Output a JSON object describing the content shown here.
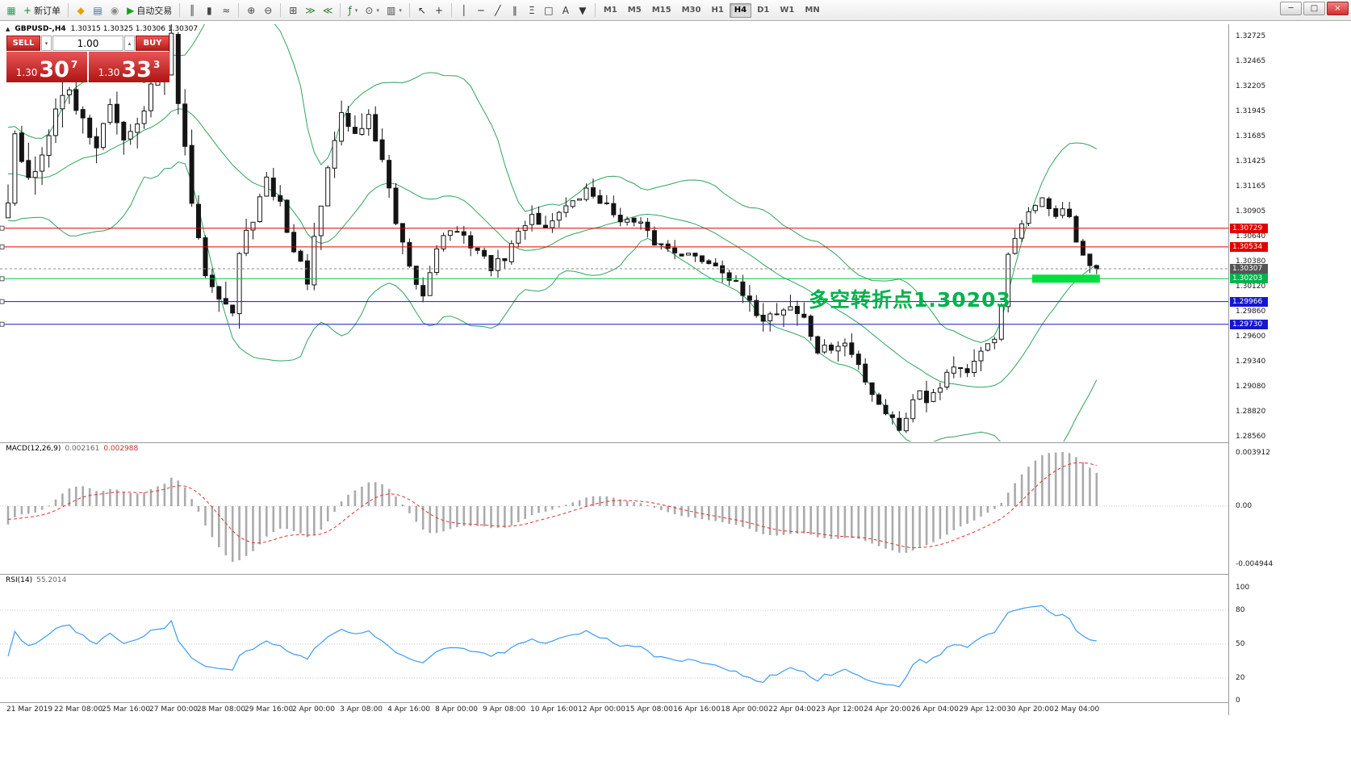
{
  "window": {
    "controls": {
      "minimize": "─",
      "maximize": "□",
      "close": "×"
    }
  },
  "toolbar": {
    "items": [
      {
        "type": "icon",
        "name": "chart-window-icon",
        "glyph": "▦",
        "color": "#2e9e5b"
      },
      {
        "type": "button",
        "name": "new-order-button",
        "glyph": "+",
        "color": "#1a7f37",
        "label": "新订单"
      },
      {
        "type": "sep"
      },
      {
        "type": "button",
        "name": "profiles-button",
        "glyph": "◆",
        "color": "#e8a000"
      },
      {
        "type": "button",
        "name": "data-window-button",
        "glyph": "▤",
        "color": "#3a6ea5"
      },
      {
        "type": "button",
        "name": "alerts-button",
        "glyph": "◉",
        "color": "#8a8a8a"
      },
      {
        "type": "button",
        "name": "auto-trading-button",
        "glyph": "▶",
        "color": "#18a018",
        "label": "自动交易"
      },
      {
        "type": "sep"
      },
      {
        "type": "button",
        "name": "bar-chart-button",
        "glyph": "║",
        "color": "#444444"
      },
      {
        "type": "button",
        "name": "candlestick-chart-button",
        "glyph": "▮",
        "color": "#444444"
      },
      {
        "type": "button",
        "name": "line-chart-button",
        "glyph": "≈",
        "color": "#444444"
      },
      {
        "type": "sep"
      },
      {
        "type": "button",
        "name": "zoom-in-button",
        "glyph": "⊕",
        "color": "#444444"
      },
      {
        "type": "button",
        "name": "zoom-out-button",
        "glyph": "⊖",
        "color": "#444444"
      },
      {
        "type": "sep"
      },
      {
        "type": "button",
        "name": "tile-windows-button",
        "glyph": "⊞",
        "color": "#444444"
      },
      {
        "type": "button",
        "name": "auto-scroll-button",
        "glyph": "≫",
        "color": "#2e7d32"
      },
      {
        "type": "button",
        "name": "chart-shift-button",
        "glyph": "≪",
        "color": "#2e7d32"
      },
      {
        "type": "sep"
      },
      {
        "type": "button",
        "name": "indicators-button",
        "glyph": "ƒ",
        "color": "#1a7f37",
        "caret": true
      },
      {
        "type": "button",
        "name": "periods-button",
        "glyph": "⊙",
        "color": "#444444",
        "caret": true
      },
      {
        "type": "button",
        "name": "templates-button",
        "glyph": "▥",
        "color": "#444444",
        "caret": true
      },
      {
        "type": "sep"
      },
      {
        "type": "button",
        "name": "cursor-button",
        "glyph": "↖",
        "color": "#333333"
      },
      {
        "type": "button",
        "name": "crosshair-button",
        "glyph": "+",
        "color": "#333333"
      },
      {
        "type": "sep"
      },
      {
        "type": "button",
        "name": "vertical-line-button",
        "glyph": "│",
        "color": "#333333"
      },
      {
        "type": "button",
        "name": "horizontal-line-button",
        "glyph": "─",
        "color": "#333333"
      },
      {
        "type": "button",
        "name": "trendline-button",
        "glyph": "╱",
        "color": "#333333"
      },
      {
        "type": "button",
        "name": "channel-button",
        "glyph": "∥",
        "color": "#333333"
      },
      {
        "type": "button",
        "name": "fibonacci-button",
        "glyph": "Ξ",
        "color": "#333333"
      },
      {
        "type": "button",
        "name": "shapes-button",
        "glyph": "□",
        "color": "#333333"
      },
      {
        "type": "button",
        "name": "text-button",
        "glyph": "A",
        "color": "#333333"
      },
      {
        "type": "button",
        "name": "arrows-button",
        "glyph": "▼",
        "color": "#333333"
      },
      {
        "type": "sep"
      }
    ],
    "timeframes": [
      "M1",
      "M5",
      "M15",
      "M30",
      "H1",
      "H4",
      "D1",
      "W1",
      "MN"
    ],
    "active_timeframe": "H4"
  },
  "chart": {
    "symbol_title": "GBPUSD-,H4",
    "ohlc": "1.30315 1.30325 1.30306 1.30307",
    "trade_panel": {
      "sell_label": "SELL",
      "buy_label": "BUY",
      "volume": "1.00",
      "sell_price": {
        "base": "1.30",
        "big": "30",
        "sup": "7"
      },
      "buy_price": {
        "base": "1.30",
        "big": "33",
        "sup": "3"
      }
    },
    "annotation_text": "多空转折点1.30203",
    "axis_prices": [
      "1.32725",
      "1.32465",
      "1.32205",
      "1.31945",
      "1.31685",
      "1.31425",
      "1.31165",
      "1.30905",
      "1.30640",
      "1.30380",
      "1.30120",
      "1.29860",
      "1.29600",
      "1.29340",
      "1.29080",
      "1.28820",
      "1.28560"
    ],
    "price_lines": [
      {
        "price": 1.30729,
        "label": "1.30729",
        "color": "#e00000",
        "label_bg": "#e00000",
        "style": "solid"
      },
      {
        "price": 1.30534,
        "label": "1.30534",
        "color": "#e00000",
        "label_bg": "#e00000",
        "style": "solid"
      },
      {
        "price": 1.30307,
        "label": "1.30307",
        "color": "#8a8a8a",
        "label_bg": "#555555",
        "style": "current"
      },
      {
        "price": 1.30203,
        "label": "1.30203",
        "color": "#00c24a",
        "label_bg": "#00b24c",
        "style": "solid"
      },
      {
        "price": 1.29966,
        "label": "1.29966",
        "color": "#1616d0",
        "label_bg": "#1616d0",
        "style": "solid"
      },
      {
        "price": 1.2973,
        "label": "1.29730",
        "color": "#1616d0",
        "label_bg": "#1616d0",
        "style": "solid"
      }
    ],
    "highlight_bar": {
      "price": 1.30203,
      "start_index": 151,
      "end_index": 160
    },
    "time_labels": [
      "21 Mar 2019",
      "22 Mar 08:00",
      "25 Mar 16:00",
      "27 Mar 00:00",
      "28 Mar 08:00",
      "29 Mar 16:00",
      "2 Apr 00:00",
      "3 Apr 08:00",
      "4 Apr 16:00",
      "8 Apr 00:00",
      "9 Apr 08:00",
      "10 Apr 16:00",
      "12 Apr 00:00",
      "15 Apr 08:00",
      "16 Apr 16:00",
      "18 Apr 00:00",
      "22 Apr 04:00",
      "23 Apr 12:00",
      "24 Apr 20:00",
      "26 Apr 04:00",
      "29 Apr 12:00",
      "30 Apr 20:00",
      "2 May 04:00"
    ],
    "chart_data": {
      "type": "candlestick",
      "symbol": "GBPUSD-",
      "timeframe": "H4",
      "candles_visible": 161,
      "price_range_top": 1.32725,
      "price_range_bottom": 1.2856,
      "price_anchors": [
        [
          -30,
          1.315
        ],
        [
          -26,
          1.3188
        ],
        [
          -22,
          1.3132
        ],
        [
          -18,
          1.317
        ],
        [
          -14,
          1.3142
        ],
        [
          -10,
          1.3118
        ],
        [
          -6,
          1.3148
        ],
        [
          -3,
          1.3095
        ],
        [
          -1,
          1.3092
        ],
        [
          0,
          1.3105
        ],
        [
          1,
          1.3165
        ],
        [
          3,
          1.312
        ],
        [
          5,
          1.315
        ],
        [
          7,
          1.3205
        ],
        [
          9,
          1.3215
        ],
        [
          11,
          1.3185
        ],
        [
          13,
          1.316
        ],
        [
          15,
          1.3195
        ],
        [
          17,
          1.317
        ],
        [
          19,
          1.3185
        ],
        [
          21,
          1.322
        ],
        [
          23,
          1.3228
        ],
        [
          24,
          1.3268
        ],
        [
          25,
          1.321
        ],
        [
          26,
          1.315
        ],
        [
          27,
          1.31
        ],
        [
          28,
          1.3055
        ],
        [
          29,
          1.303
        ],
        [
          31,
          1.3008
        ],
        [
          33,
          1.2985
        ],
        [
          34,
          1.3045
        ],
        [
          36,
          1.3085
        ],
        [
          38,
          1.312
        ],
        [
          40,
          1.3098
        ],
        [
          42,
          1.3048
        ],
        [
          44,
          1.302
        ],
        [
          46,
          1.3095
        ],
        [
          48,
          1.3165
        ],
        [
          49,
          1.3192
        ],
        [
          51,
          1.317
        ],
        [
          53,
          1.3188
        ],
        [
          55,
          1.3145
        ],
        [
          57,
          1.3075
        ],
        [
          59,
          1.3028
        ],
        [
          61,
          1.3002
        ],
        [
          63,
          1.3055
        ],
        [
          65,
          1.3072
        ],
        [
          67,
          1.3062
        ],
        [
          69,
          1.305
        ],
        [
          71,
          1.3032
        ],
        [
          73,
          1.3042
        ],
        [
          75,
          1.3068
        ],
        [
          77,
          1.3088
        ],
        [
          79,
          1.3072
        ],
        [
          81,
          1.3092
        ],
        [
          83,
          1.3098
        ],
        [
          85,
          1.3112
        ],
        [
          87,
          1.3102
        ],
        [
          89,
          1.3088
        ],
        [
          91,
          1.308
        ],
        [
          93,
          1.3076
        ],
        [
          95,
          1.3058
        ],
        [
          97,
          1.3052
        ],
        [
          99,
          1.3048
        ],
        [
          101,
          1.3042
        ],
        [
          103,
          1.3038
        ],
        [
          105,
          1.3032
        ],
        [
          107,
          1.3012
        ],
        [
          109,
          1.2992
        ],
        [
          111,
          1.298
        ],
        [
          113,
          1.2986
        ],
        [
          115,
          1.2992
        ],
        [
          117,
          1.2978
        ],
        [
          119,
          1.2945
        ],
        [
          121,
          1.2948
        ],
        [
          123,
          1.2952
        ],
        [
          125,
          1.293
        ],
        [
          127,
          1.2902
        ],
        [
          129,
          1.2882
        ],
        [
          131,
          1.2866
        ],
        [
          133,
          1.2892
        ],
        [
          134,
          1.2906
        ],
        [
          135,
          1.2896
        ],
        [
          137,
          1.2912
        ],
        [
          139,
          1.2932
        ],
        [
          141,
          1.2924
        ],
        [
          143,
          1.294
        ],
        [
          145,
          1.2958
        ],
        [
          146,
          1.2995
        ],
        [
          147,
          1.3042
        ],
        [
          148,
          1.3062
        ],
        [
          150,
          1.3086
        ],
        [
          152,
          1.3108
        ],
        [
          153,
          1.3092
        ],
        [
          154,
          1.3082
        ],
        [
          155,
          1.3096
        ],
        [
          156,
          1.3086
        ],
        [
          157,
          1.3058
        ],
        [
          158,
          1.304
        ],
        [
          159,
          1.3034
        ],
        [
          160,
          1.30307
        ]
      ],
      "indicators": [
        {
          "name": "Bollinger Bands",
          "period": 20,
          "deviation": 2
        },
        {
          "name": "MACD",
          "fast": 12,
          "slow": 26,
          "signal": 9
        },
        {
          "name": "RSI",
          "period": 14
        }
      ]
    }
  },
  "macd": {
    "name": "MACD(12,26,9)",
    "value_main": "0.002161",
    "value_signal": "0.002988",
    "axis": [
      {
        "label": "0.003912",
        "value": 0.003912
      },
      {
        "label": "0.00",
        "value": 0
      },
      {
        "label": "-0.004944",
        "value": -0.004944
      }
    ]
  },
  "rsi": {
    "name": "RSI(14)",
    "value": "55.2014",
    "axis": [
      {
        "label": "100",
        "value": 100
      },
      {
        "label": "80",
        "value": 80
      },
      {
        "label": "50",
        "value": 50
      },
      {
        "label": "20",
        "value": 20
      },
      {
        "label": "0",
        "value": 0
      }
    ],
    "levels": [
      80,
      50,
      20
    ]
  },
  "colors": {
    "bollinger": "#2fa45e",
    "candle_up": "#ffffff",
    "candle_down": "#141414",
    "candle_border": "#141414",
    "macd_hist": "#ababab",
    "macd_signal": "#e03232",
    "rsi_line": "#3b9cf5",
    "annotation": "#00b24c",
    "highlight": "#00df3f",
    "pane_border": "#9a9a9a",
    "grid_dot": "#c8c8c8"
  }
}
